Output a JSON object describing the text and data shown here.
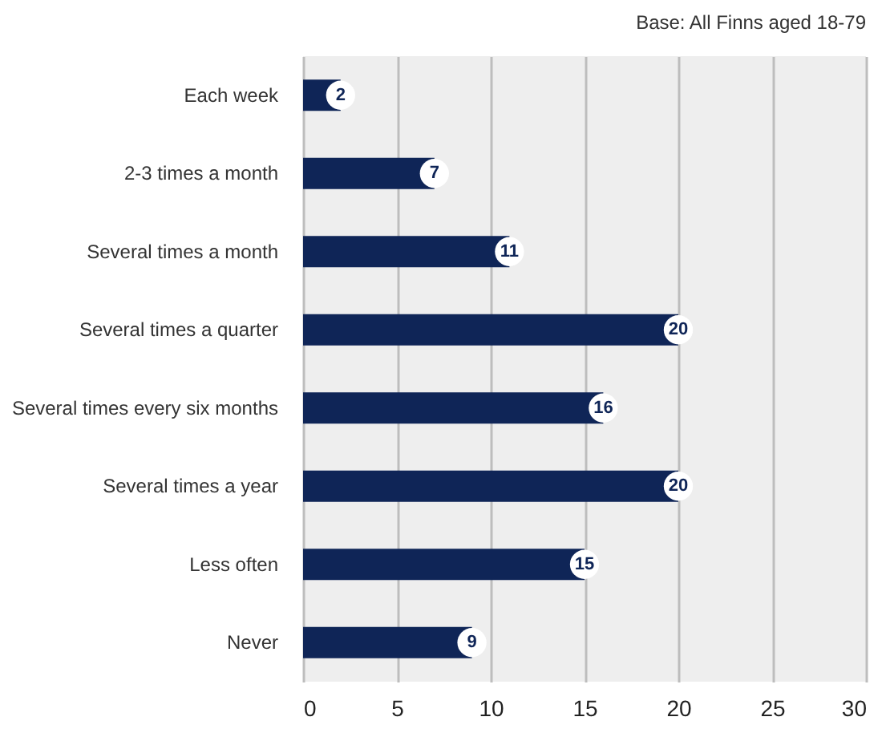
{
  "chart_data": {
    "type": "bar",
    "orientation": "horizontal",
    "categories": [
      "Each week",
      "2-3 times a month",
      "Several times a month",
      "Several times a quarter",
      "Several times every six months",
      "Several times a year",
      "Less often",
      "Never"
    ],
    "values": [
      2,
      7,
      11,
      20,
      16,
      20,
      15,
      9
    ],
    "color": "#0f2557",
    "xlim": [
      0,
      30
    ],
    "xticks": [
      0,
      5,
      10,
      15,
      20,
      25,
      30
    ],
    "grid": "x",
    "data_labels": true,
    "annotations": [
      "Base: All Finns aged 18-79"
    ]
  }
}
